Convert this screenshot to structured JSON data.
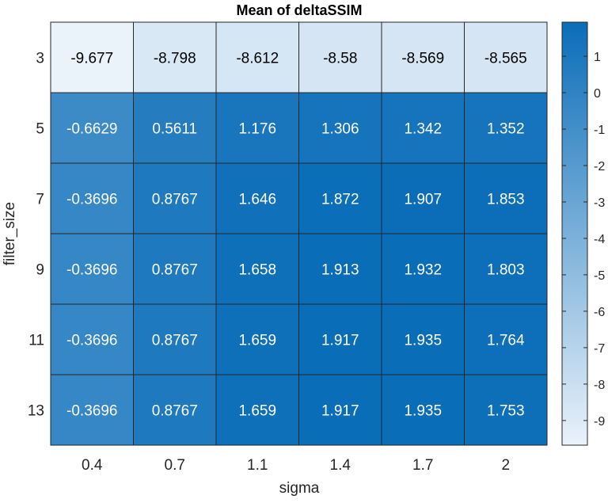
{
  "chart_data": {
    "type": "heatmap",
    "title": "Mean of deltaSSIM",
    "xlabel": "sigma",
    "ylabel": "filter_size",
    "x_categories": [
      "0.4",
      "0.7",
      "1.1",
      "1.4",
      "1.7",
      "2"
    ],
    "y_categories": [
      "3",
      "5",
      "7",
      "9",
      "11",
      "13"
    ],
    "values": [
      [
        -9.677,
        -8.798,
        -8.612,
        -8.58,
        -8.569,
        -8.565
      ],
      [
        -0.6629,
        0.5611,
        1.176,
        1.306,
        1.342,
        1.352
      ],
      [
        -0.3696,
        0.8767,
        1.646,
        1.872,
        1.907,
        1.853
      ],
      [
        -0.3696,
        0.8767,
        1.658,
        1.913,
        1.932,
        1.803
      ],
      [
        -0.3696,
        0.8767,
        1.659,
        1.917,
        1.935,
        1.764
      ],
      [
        -0.3696,
        0.8767,
        1.659,
        1.917,
        1.935,
        1.753
      ]
    ],
    "cell_labels": [
      [
        "-9.677",
        "-8.798",
        "-8.612",
        "-8.58",
        "-8.569",
        "-8.565"
      ],
      [
        "-0.6629",
        "0.5611",
        "1.176",
        "1.306",
        "1.342",
        "1.352"
      ],
      [
        "-0.3696",
        "0.8767",
        "1.646",
        "1.872",
        "1.907",
        "1.853"
      ],
      [
        "-0.3696",
        "0.8767",
        "1.658",
        "1.913",
        "1.932",
        "1.803"
      ],
      [
        "-0.3696",
        "0.8767",
        "1.659",
        "1.917",
        "1.935",
        "1.764"
      ],
      [
        "-0.3696",
        "0.8767",
        "1.659",
        "1.917",
        "1.935",
        "1.753"
      ]
    ],
    "colorbar": {
      "ticks": [
        1,
        0,
        -1,
        -2,
        -3,
        -4,
        -5,
        -6,
        -7,
        -8,
        -9
      ],
      "range": [
        -9.677,
        1.935
      ]
    },
    "colors": {
      "low": "#eaf2fa",
      "high": "#0a6db8",
      "grid": "#262626",
      "text_dark": "#000000",
      "text_light": "#ffffff",
      "axis_text": "#262626"
    }
  }
}
